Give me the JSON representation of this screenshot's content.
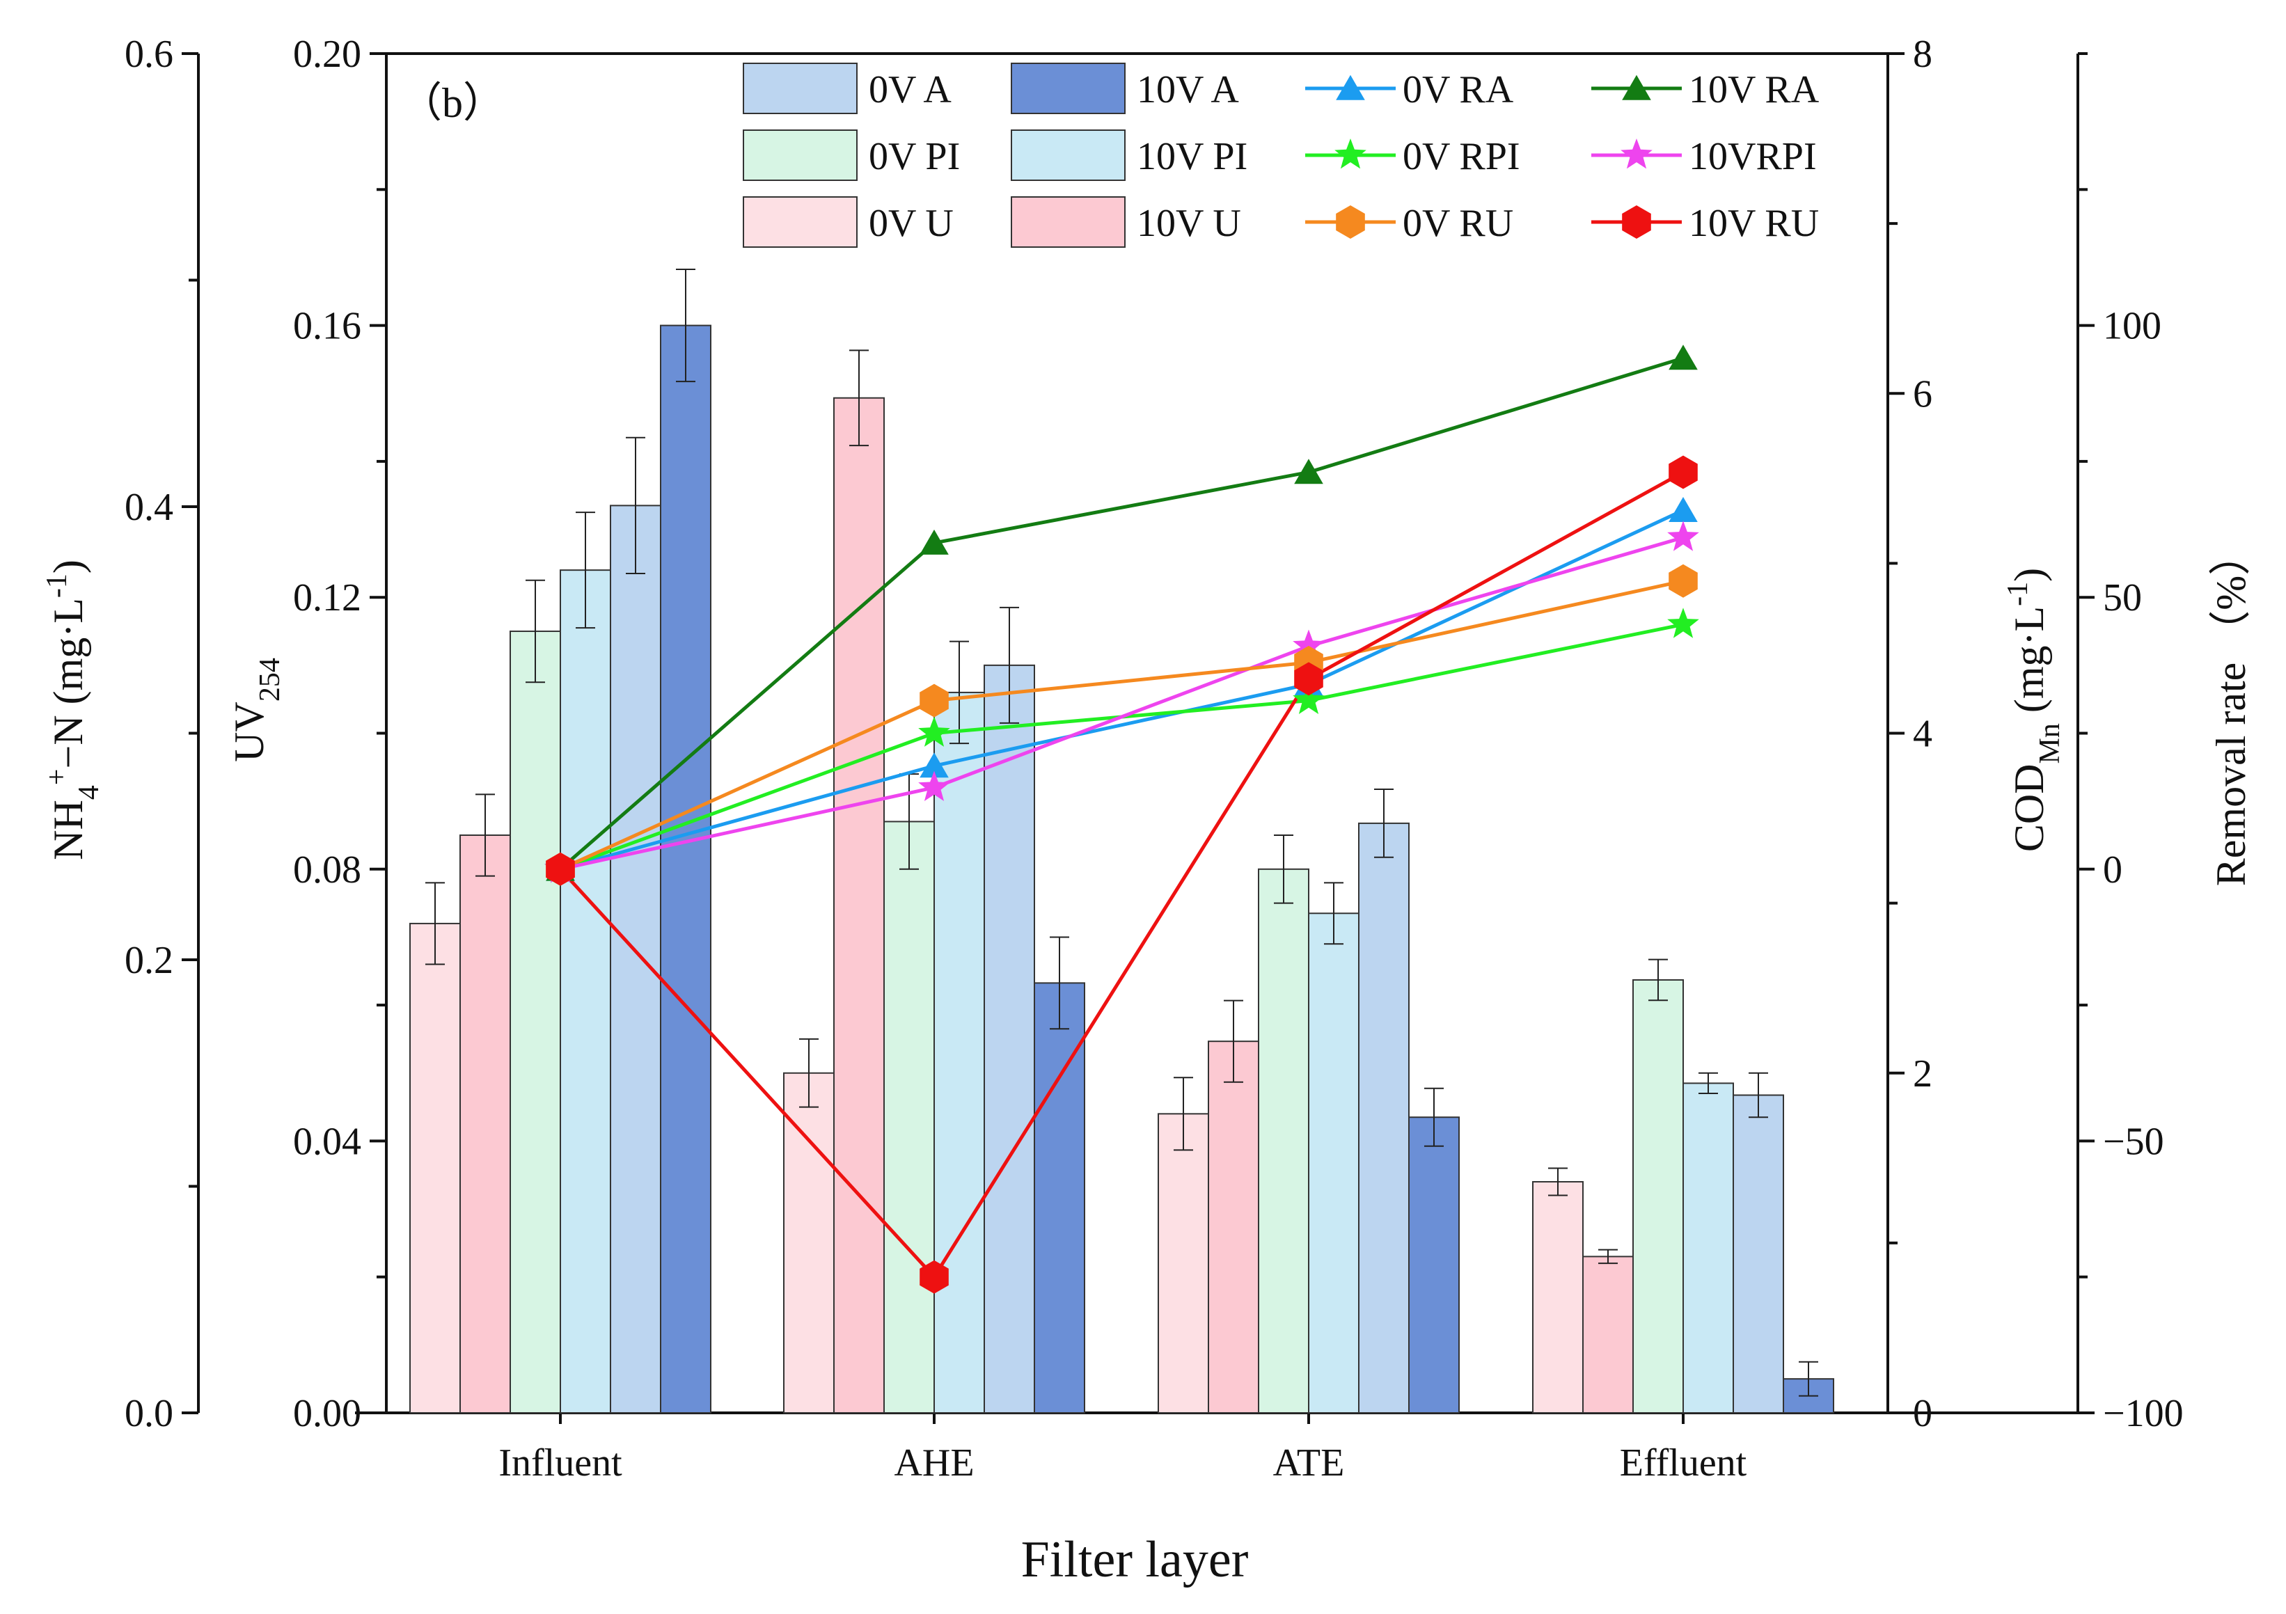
{
  "chart_data": {
    "type": "bar",
    "panel_label": "（b）",
    "title": "",
    "xlabel": "Filter layer",
    "categories": [
      "Influent",
      "AHE",
      "ATE",
      "Effluent"
    ],
    "axes": {
      "nh4": {
        "label": "NH4+-N (mg·L-1)",
        "min": 0,
        "max": 0.6,
        "ticks": [
          "0.0",
          "0.2",
          "0.4",
          "0.6"
        ]
      },
      "uv": {
        "label": "UV254",
        "min": 0,
        "max": 0.2,
        "ticks": [
          "0.00",
          "0.04",
          "0.08",
          "0.12",
          "0.16",
          "0.20"
        ]
      },
      "cod": {
        "label": "CODMn (mg·L-1)",
        "min": 0,
        "max": 8,
        "ticks": [
          "0",
          "2",
          "4",
          "6",
          "8"
        ]
      },
      "removal": {
        "label": "Removal rate （%）",
        "min": -100,
        "max": 150,
        "ticks": [
          "−100",
          "−50",
          "0",
          "50",
          "100"
        ]
      }
    },
    "bar_series": [
      {
        "name": "0V U",
        "axis": "nh4",
        "color": "#fde0e4",
        "values": [
          0.216,
          0.15,
          0.132,
          0.102
        ],
        "errors": [
          0.018,
          0.015,
          0.016,
          0.006
        ]
      },
      {
        "name": "10V U",
        "axis": "nh4",
        "color": "#fcc9d2",
        "values": [
          0.255,
          0.448,
          0.164,
          0.069
        ],
        "errors": [
          0.018,
          0.021,
          0.018,
          0.003
        ]
      },
      {
        "name": "0V PI",
        "axis": "uv",
        "color": "#d7f5e4",
        "values": [
          0.115,
          0.087,
          0.08,
          0.0637
        ],
        "errors": [
          0.0075,
          0.007,
          0.005,
          0.003
        ]
      },
      {
        "name": "10V PI",
        "axis": "uv",
        "color": "#c9e9f5",
        "values": [
          0.124,
          0.106,
          0.0735,
          0.0485
        ],
        "errors": [
          0.0085,
          0.0075,
          0.0045,
          0.0015
        ]
      },
      {
        "name": "0V A",
        "axis": "cod",
        "color": "#bcd5f0",
        "values": [
          5.34,
          4.4,
          3.47,
          1.87
        ],
        "errors": [
          0.4,
          0.34,
          0.2,
          0.13
        ]
      },
      {
        "name": "10V A",
        "axis": "cod",
        "color": "#6b8fd6",
        "values": [
          6.4,
          2.53,
          1.74,
          0.2
        ],
        "errors": [
          0.33,
          0.27,
          0.17,
          0.1
        ]
      }
    ],
    "line_series": [
      {
        "name": "0V RA",
        "color": "#1b9cf0",
        "marker": "triangle",
        "values": [
          0,
          19,
          34,
          66
        ]
      },
      {
        "name": "10V RA",
        "color": "#137c13",
        "marker": "triangle",
        "values": [
          0,
          60,
          73,
          94
        ]
      },
      {
        "name": "0V RPI",
        "color": "#22ee22",
        "marker": "star",
        "values": [
          0,
          25,
          31,
          45
        ]
      },
      {
        "name": "10VRPI",
        "color": "#ee44ee",
        "marker": "star",
        "values": [
          0,
          15,
          41,
          61
        ]
      },
      {
        "name": "0V RU",
        "color": "#f5891f",
        "marker": "hexagon",
        "values": [
          0,
          31,
          38,
          53
        ]
      },
      {
        "name": "10V RU",
        "color": "#ee1111",
        "marker": "hexagon",
        "values": [
          0,
          -75,
          35,
          73
        ]
      }
    ],
    "legend_position": "top-right"
  }
}
